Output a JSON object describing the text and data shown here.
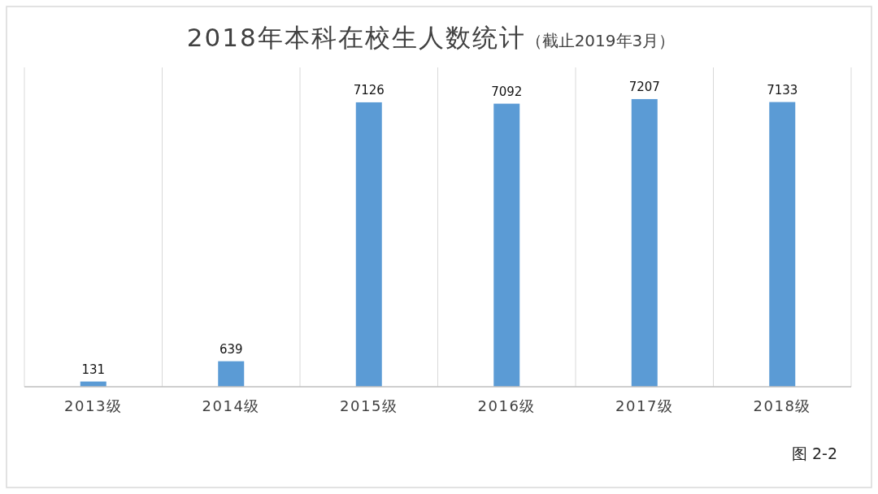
{
  "chart_data": {
    "type": "bar",
    "title": "2018年本科在校生人数统计",
    "subtitle": "（截止2019年3月）",
    "categories": [
      "2013级",
      "2014级",
      "2015级",
      "2016级",
      "2017级",
      "2018级"
    ],
    "values": [
      131,
      639,
      7126,
      7092,
      7207,
      7133
    ],
    "color": "#5b9bd5",
    "ylim": [
      0,
      8000
    ],
    "tick_labels": "x",
    "data_labels": true,
    "grid": "x",
    "annotations": [
      "图 2-2"
    ]
  }
}
